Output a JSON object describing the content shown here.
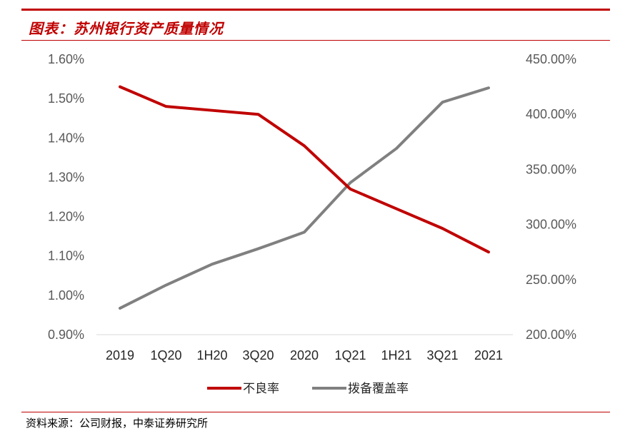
{
  "header": {
    "title": "图表：苏州银行资产质量情况"
  },
  "footer": {
    "source": "资料来源：公司财报，中泰证券研究所"
  },
  "chart_data": {
    "type": "line",
    "categories": [
      "2019",
      "1Q20",
      "1H20",
      "3Q20",
      "2020",
      "1Q21",
      "1H21",
      "3Q21",
      "2021"
    ],
    "series": [
      {
        "name": "不良率",
        "axis": "left",
        "color": "#c00000",
        "values": [
          1.53,
          1.48,
          1.47,
          1.46,
          1.38,
          1.27,
          1.22,
          1.17,
          1.11
        ]
      },
      {
        "name": "拨备覆盖率",
        "axis": "right",
        "color": "#808080",
        "values": [
          224,
          245,
          264,
          278,
          293,
          338,
          369,
          411,
          424
        ]
      }
    ],
    "y_left": {
      "ylim": [
        0.9,
        1.6
      ],
      "ticks": [
        "0.90%",
        "1.00%",
        "1.10%",
        "1.20%",
        "1.30%",
        "1.40%",
        "1.50%",
        "1.60%"
      ]
    },
    "y_right": {
      "ylim": [
        200,
        450
      ],
      "ticks": [
        "200.00%",
        "250.00%",
        "300.00%",
        "350.00%",
        "400.00%",
        "450.00%"
      ]
    },
    "legend": "bottom",
    "grid": false
  }
}
